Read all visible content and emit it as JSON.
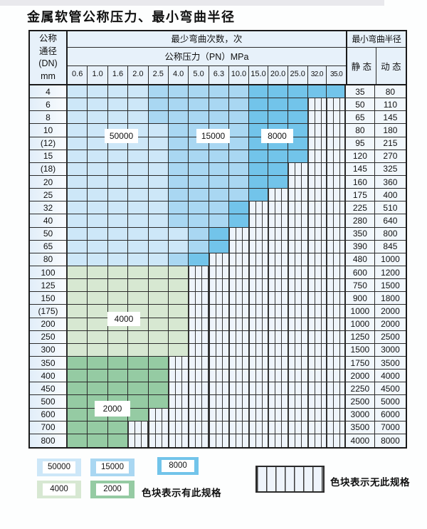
{
  "title": "金属软管公称压力、最小弯曲半径",
  "table": {
    "dn_header_lines": [
      "公称",
      "通径",
      "(DN)",
      "mm"
    ],
    "cycles_header": "最少弯曲次数，次",
    "pressure_header": "公称压力（PN）MPa",
    "radius_header": "最小弯曲半径",
    "static_label": "静 态",
    "dynamic_label": "动 态",
    "pressures": [
      "0.6",
      "1.0",
      "1.6",
      "2.0",
      "2.5",
      "4.0",
      "5.0",
      "6.3",
      "10.0",
      "15.0",
      "20.0",
      "25.0",
      "32.0",
      "35.0"
    ],
    "rows": [
      {
        "dn": "4",
        "static": "35",
        "dynamic": "80",
        "cells": "aaaabbbbbccccc"
      },
      {
        "dn": "6",
        "static": "50",
        "dynamic": "110",
        "cells": "aaaabbbbbcccxx"
      },
      {
        "dn": "8",
        "static": "65",
        "dynamic": "145",
        "cells": "aaaabbbbbcccxx"
      },
      {
        "dn": "10",
        "static": "80",
        "dynamic": "180",
        "cells": "aaaaabbbbcccxx"
      },
      {
        "dn": "(12)",
        "static": "95",
        "dynamic": "215",
        "cells": "aaaaabbbbcccxx"
      },
      {
        "dn": "15",
        "static": "120",
        "dynamic": "270",
        "cells": "aaaaabbbbcccxx"
      },
      {
        "dn": "(18)",
        "static": "145",
        "dynamic": "325",
        "cells": "aaaaabbbbccxxx"
      },
      {
        "dn": "20",
        "static": "160",
        "dynamic": "360",
        "cells": "aaaaabbbbccxxx"
      },
      {
        "dn": "25",
        "static": "175",
        "dynamic": "400",
        "cells": "aaaaabbbbcxxxx"
      },
      {
        "dn": "32",
        "static": "225",
        "dynamic": "510",
        "cells": "aaaaabbbcxxxxx"
      },
      {
        "dn": "40",
        "static": "280",
        "dynamic": "640",
        "cells": "aaaaabbbcxxxxx"
      },
      {
        "dn": "50",
        "static": "350",
        "dynamic": "800",
        "cells": "aaaaaabcxxxxxx"
      },
      {
        "dn": "65",
        "static": "390",
        "dynamic": "845",
        "cells": "aaaaaabcxxxxxx"
      },
      {
        "dn": "80",
        "static": "480",
        "dynamic": "1000",
        "cells": "aaaaabcxxxxxxx"
      },
      {
        "dn": "100",
        "static": "600",
        "dynamic": "1200",
        "cells": "ddddddxxxxxxxx"
      },
      {
        "dn": "125",
        "static": "750",
        "dynamic": "1500",
        "cells": "ddddddxxxxxxxx"
      },
      {
        "dn": "150",
        "static": "900",
        "dynamic": "1800",
        "cells": "ddddddxxxxxxxx"
      },
      {
        "dn": "(175)",
        "static": "1000",
        "dynamic": "2000",
        "cells": "ddddddxxxxxxxx"
      },
      {
        "dn": "200",
        "static": "1000",
        "dynamic": "2000",
        "cells": "ddddddxxxxxxxx"
      },
      {
        "dn": "250",
        "static": "1250",
        "dynamic": "2500",
        "cells": "ddddddxxxxxxxx"
      },
      {
        "dn": "300",
        "static": "1500",
        "dynamic": "3000",
        "cells": "ddddddxxxxxxxx"
      },
      {
        "dn": "350",
        "static": "1750",
        "dynamic": "3500",
        "cells": "eeeeexxxxxxxxx"
      },
      {
        "dn": "400",
        "static": "2000",
        "dynamic": "4000",
        "cells": "eeeeexxxxxxxxx"
      },
      {
        "dn": "450",
        "static": "2250",
        "dynamic": "4500",
        "cells": "eeeeexxxxxxxxx"
      },
      {
        "dn": "500",
        "static": "2500",
        "dynamic": "5000",
        "cells": "eeeeexxxxxxxxx"
      },
      {
        "dn": "600",
        "static": "3000",
        "dynamic": "6000",
        "cells": "eeeexxxxxxxxxx"
      },
      {
        "dn": "700",
        "static": "3500",
        "dynamic": "7000",
        "cells": "eeexxxxxxxxxxx"
      },
      {
        "dn": "800",
        "static": "4000",
        "dynamic": "8000",
        "cells": "eeexxxxxxxxxxx"
      }
    ]
  },
  "overlays": {
    "v50000": "50000",
    "v15000": "15000",
    "v8000": "8000",
    "v4000": "4000",
    "v2000": "2000"
  },
  "legend": {
    "items": [
      {
        "value": "50000",
        "zone": "blue_50000"
      },
      {
        "value": "15000",
        "zone": "blue_15000"
      },
      {
        "value": "8000",
        "zone": "blue_8000"
      },
      {
        "value": "4000",
        "zone": "green_4000"
      },
      {
        "value": "2000",
        "zone": "green_2000"
      }
    ],
    "has_spec_note": "色块表示有此规格",
    "no_spec_note": "色块表示无此规格"
  },
  "colors": {
    "blue_50000": "#cde7f8",
    "blue_15000": "#a9d7f2",
    "blue_8000": "#72c4ea",
    "green_4000": "#d7e8d2",
    "green_2000": "#95cba3",
    "striped_bg": "#eef4fb",
    "grid_line": "#2a2a2a",
    "header_bg": "#e7f1fa"
  }
}
